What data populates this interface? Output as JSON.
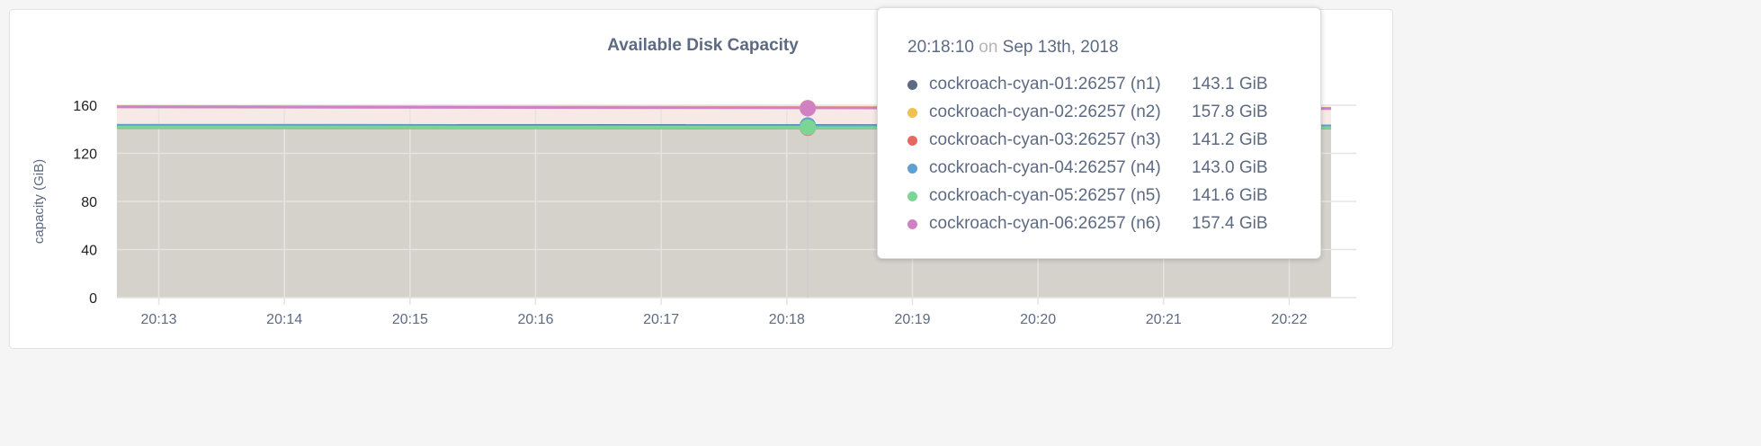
{
  "chart_data": {
    "type": "area",
    "title": "Available Disk Capacity",
    "ylabel": "capacity (GiB)",
    "xlabel": "",
    "ylim": [
      0,
      160
    ],
    "yticks": [
      0,
      40,
      80,
      120,
      160
    ],
    "xticks": [
      "20:13",
      "20:14",
      "20:15",
      "20:16",
      "20:17",
      "20:18",
      "20:19",
      "20:20",
      "20:21",
      "20:22"
    ],
    "xrange": [
      "20:12:40",
      "20:22:20"
    ],
    "grid": true,
    "series": [
      {
        "name": "cockroach-cyan-01:26257 (n1)",
        "color": "#5d6a83",
        "x": [
          "20:12:40",
          "20:22:20"
        ],
        "values": [
          143.3,
          143.0
        ]
      },
      {
        "name": "cockroach-cyan-02:26257 (n2)",
        "color": "#f0c050",
        "x": [
          "20:12:40",
          "20:22:20"
        ],
        "values": [
          159.0,
          157.6
        ]
      },
      {
        "name": "cockroach-cyan-03:26257 (n3)",
        "color": "#e8685f",
        "x": [
          "20:12:40",
          "20:22:20"
        ],
        "values": [
          141.4,
          141.1
        ]
      },
      {
        "name": "cockroach-cyan-04:26257 (n4)",
        "color": "#5ea0d3",
        "x": [
          "20:12:40",
          "20:22:20"
        ],
        "values": [
          143.2,
          142.9
        ]
      },
      {
        "name": "cockroach-cyan-05:26257 (n5)",
        "color": "#7bd696",
        "x": [
          "20:12:40",
          "20:22:20"
        ],
        "values": [
          141.8,
          141.5
        ]
      },
      {
        "name": "cockroach-cyan-06:26257 (n6)",
        "color": "#d081c4",
        "x": [
          "20:12:40",
          "20:22:20"
        ],
        "values": [
          158.6,
          157.2
        ]
      }
    ]
  },
  "tooltip": {
    "time": "20:18:10",
    "on": "on",
    "date": "Sep 13th, 2018",
    "rows": [
      {
        "name": "cockroach-cyan-01:26257 (n1)",
        "value": "143.1 GiB"
      },
      {
        "name": "cockroach-cyan-02:26257 (n2)",
        "value": "157.8 GiB"
      },
      {
        "name": "cockroach-cyan-03:26257 (n3)",
        "value": "141.2 GiB"
      },
      {
        "name": "cockroach-cyan-04:26257 (n4)",
        "value": "143.0 GiB"
      },
      {
        "name": "cockroach-cyan-05:26257 (n5)",
        "value": "141.6 GiB"
      },
      {
        "name": "cockroach-cyan-06:26257 (n6)",
        "value": "157.4 GiB"
      }
    ]
  }
}
